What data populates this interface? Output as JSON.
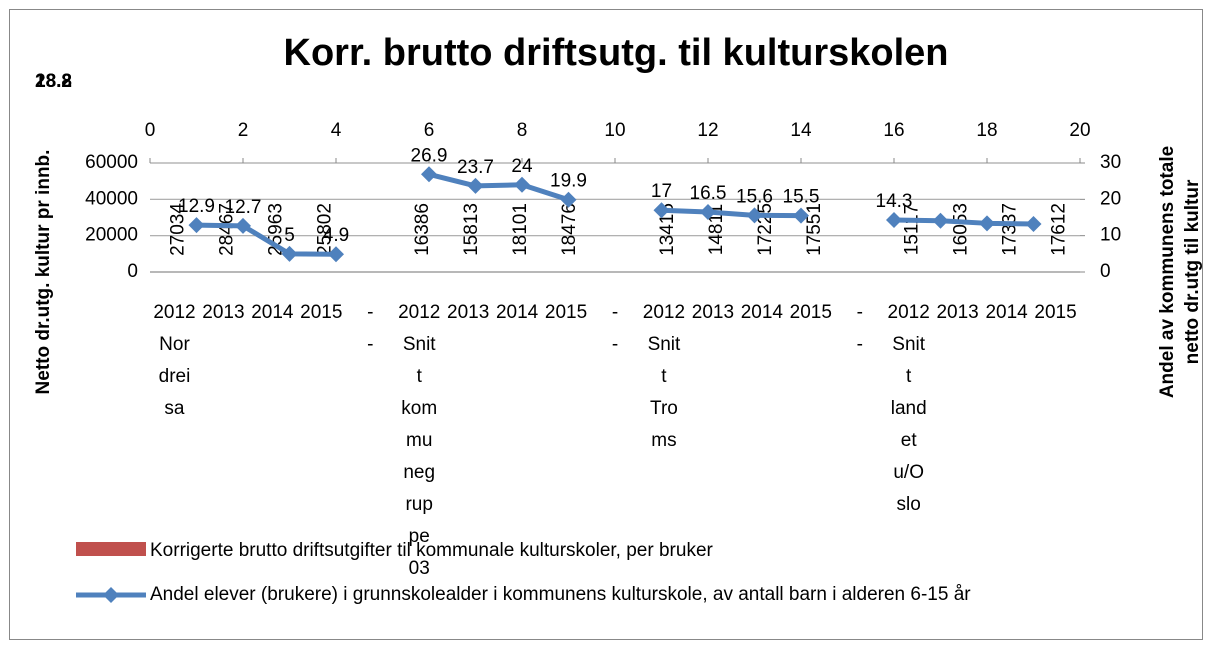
{
  "chart_data": {
    "type": "bar-line",
    "title": "Korr. brutto driftsutg. til kulturskolen",
    "corner_labels": [
      "28.8",
      "18.2"
    ],
    "ylabel": "Netto dr.utg. kultur pr innb.",
    "y2label": [
      "Andel av kommunens totale",
      "netto dr.utg til kultur"
    ],
    "categories": [
      "2012 Nordreisa",
      "2013",
      "2014",
      "2015",
      "- -",
      "2012 Snitt kommunegruppe 03",
      "2013",
      "2014",
      "2015",
      "- -",
      "2012 Snitt Troms",
      "2013",
      "2014",
      "2015",
      "- -",
      "2012 Snitt landet u/Oslo",
      "2013",
      "2014",
      "2015"
    ],
    "ylim": [
      0,
      60000
    ],
    "yticks": [
      0,
      20000,
      40000,
      60000
    ],
    "y2lim": [
      0,
      30
    ],
    "y2ticks": [
      0,
      10,
      20,
      30
    ],
    "x2lim": [
      0,
      20
    ],
    "x2ticks": [
      0,
      2,
      4,
      6,
      8,
      10,
      12,
      14,
      16,
      18,
      20
    ],
    "grid": true,
    "series": [
      {
        "name": "Korrigerte brutto driftsutgifter til kommunale kulturskoler, per bruker",
        "kind": "bar",
        "color": "#c0504d",
        "values": [
          27034,
          28467,
          25963,
          25802,
          null,
          16386,
          15813,
          18101,
          18476,
          null,
          13415,
          14811,
          17225,
          17551,
          null,
          15117,
          16053,
          17337,
          17612
        ]
      },
      {
        "name": "Andel elever (brukere) i grunnskolealder i  kommunens kulturskole, av antall barn i alderen 6-15 år",
        "kind": "line",
        "axis": "y2",
        "color": "#4f81bd",
        "x": [
          1,
          2,
          3,
          4,
          null,
          6,
          7,
          8,
          9,
          null,
          11,
          12,
          13,
          14,
          null,
          16,
          17,
          18,
          19
        ],
        "values": [
          12.9,
          12.7,
          5,
          4.9,
          null,
          26.9,
          23.7,
          24,
          19.9,
          null,
          17,
          16.5,
          15.6,
          15.5,
          null,
          14.3,
          14.1,
          13.4,
          13.2
        ],
        "value_labels": [
          "12.9",
          "12.7",
          "5",
          "4.9",
          null,
          "26.9",
          "23.7",
          "24",
          "19.9",
          null,
          "17",
          "16.5",
          "15.6",
          "15.5",
          null,
          "14.3",
          null,
          null,
          null
        ]
      }
    ]
  }
}
